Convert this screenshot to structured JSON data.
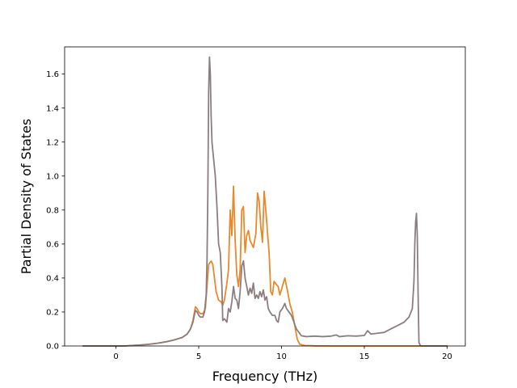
{
  "chart_data": {
    "type": "line",
    "title": "",
    "xlabel": "Frequency (THz)",
    "ylabel": "Partial Density of States",
    "xlim": [
      -3.1,
      21.1
    ],
    "ylim": [
      0.0,
      1.76
    ],
    "x_ticks": [
      0,
      5,
      10,
      15,
      20
    ],
    "y_ticks": [
      0.0,
      0.2,
      0.4,
      0.6,
      0.8,
      1.0,
      1.2,
      1.4,
      1.6
    ],
    "x_tick_labels": [
      "0",
      "5",
      "10",
      "15",
      "20"
    ],
    "y_tick_labels": [
      "0.0",
      "0.2",
      "0.4",
      "0.6",
      "0.8",
      "1.0",
      "1.2",
      "1.4",
      "1.6"
    ],
    "grid": false,
    "legend": "none",
    "series": [
      {
        "color": "#e8892b",
        "points": [
          [
            -2.0,
            0.0
          ],
          [
            0.0,
            0.0
          ],
          [
            0.5,
            0.0
          ],
          [
            1.0,
            0.003
          ],
          [
            1.5,
            0.006
          ],
          [
            2.0,
            0.01
          ],
          [
            2.5,
            0.016
          ],
          [
            3.0,
            0.024
          ],
          [
            3.5,
            0.035
          ],
          [
            4.0,
            0.05
          ],
          [
            4.3,
            0.07
          ],
          [
            4.5,
            0.1
          ],
          [
            4.65,
            0.15
          ],
          [
            4.8,
            0.23
          ],
          [
            4.9,
            0.22
          ],
          [
            5.0,
            0.2
          ],
          [
            5.1,
            0.19
          ],
          [
            5.25,
            0.19
          ],
          [
            5.4,
            0.22
          ],
          [
            5.5,
            0.35
          ],
          [
            5.6,
            0.48
          ],
          [
            5.75,
            0.5
          ],
          [
            5.85,
            0.48
          ],
          [
            5.95,
            0.4
          ],
          [
            6.05,
            0.32
          ],
          [
            6.2,
            0.27
          ],
          [
            6.35,
            0.26
          ],
          [
            6.45,
            0.24
          ],
          [
            6.55,
            0.27
          ],
          [
            6.7,
            0.37
          ],
          [
            6.8,
            0.45
          ],
          [
            6.9,
            0.8
          ],
          [
            7.0,
            0.65
          ],
          [
            7.1,
            0.94
          ],
          [
            7.2,
            0.62
          ],
          [
            7.3,
            0.42
          ],
          [
            7.4,
            0.35
          ],
          [
            7.5,
            0.45
          ],
          [
            7.6,
            0.8
          ],
          [
            7.7,
            0.82
          ],
          [
            7.8,
            0.55
          ],
          [
            7.9,
            0.65
          ],
          [
            8.0,
            0.68
          ],
          [
            8.1,
            0.62
          ],
          [
            8.2,
            0.6
          ],
          [
            8.3,
            0.58
          ],
          [
            8.45,
            0.66
          ],
          [
            8.55,
            0.9
          ],
          [
            8.65,
            0.85
          ],
          [
            8.75,
            0.7
          ],
          [
            8.85,
            0.61
          ],
          [
            8.95,
            0.91
          ],
          [
            9.05,
            0.8
          ],
          [
            9.15,
            0.67
          ],
          [
            9.25,
            0.55
          ],
          [
            9.35,
            0.32
          ],
          [
            9.45,
            0.3
          ],
          [
            9.55,
            0.38
          ],
          [
            9.7,
            0.36
          ],
          [
            9.8,
            0.35
          ],
          [
            9.9,
            0.3
          ],
          [
            10.05,
            0.35
          ],
          [
            10.2,
            0.4
          ],
          [
            10.35,
            0.33
          ],
          [
            10.5,
            0.25
          ],
          [
            10.65,
            0.2
          ],
          [
            10.8,
            0.12
          ],
          [
            10.95,
            0.04
          ],
          [
            11.1,
            0.01
          ],
          [
            11.4,
            0.003
          ],
          [
            12.0,
            0.001
          ],
          [
            13.0,
            0.0
          ],
          [
            15.0,
            0.0
          ],
          [
            17.0,
            0.0
          ],
          [
            18.3,
            0.0
          ],
          [
            18.4,
            0.0
          ],
          [
            20.0,
            0.0
          ]
        ]
      },
      {
        "color": "#8c7e80",
        "points": [
          [
            -2.0,
            0.0
          ],
          [
            0.0,
            0.0
          ],
          [
            0.5,
            0.0
          ],
          [
            1.0,
            0.003
          ],
          [
            1.5,
            0.006
          ],
          [
            2.0,
            0.01
          ],
          [
            2.5,
            0.016
          ],
          [
            3.0,
            0.024
          ],
          [
            3.5,
            0.035
          ],
          [
            4.0,
            0.05
          ],
          [
            4.3,
            0.07
          ],
          [
            4.5,
            0.1
          ],
          [
            4.65,
            0.14
          ],
          [
            4.8,
            0.21
          ],
          [
            4.9,
            0.2
          ],
          [
            5.0,
            0.18
          ],
          [
            5.1,
            0.17
          ],
          [
            5.25,
            0.17
          ],
          [
            5.35,
            0.2
          ],
          [
            5.45,
            0.3
          ],
          [
            5.5,
            0.5
          ],
          [
            5.55,
            0.9
          ],
          [
            5.6,
            1.5
          ],
          [
            5.65,
            1.7
          ],
          [
            5.7,
            1.6
          ],
          [
            5.75,
            1.35
          ],
          [
            5.8,
            1.2
          ],
          [
            5.9,
            1.1
          ],
          [
            6.0,
            1.0
          ],
          [
            6.1,
            0.82
          ],
          [
            6.2,
            0.6
          ],
          [
            6.3,
            0.55
          ],
          [
            6.4,
            0.35
          ],
          [
            6.45,
            0.15
          ],
          [
            6.55,
            0.16
          ],
          [
            6.7,
            0.14
          ],
          [
            6.8,
            0.22
          ],
          [
            6.9,
            0.2
          ],
          [
            7.0,
            0.26
          ],
          [
            7.1,
            0.35
          ],
          [
            7.2,
            0.28
          ],
          [
            7.3,
            0.27
          ],
          [
            7.4,
            0.22
          ],
          [
            7.5,
            0.32
          ],
          [
            7.6,
            0.47
          ],
          [
            7.7,
            0.5
          ],
          [
            7.8,
            0.4
          ],
          [
            7.9,
            0.35
          ],
          [
            8.0,
            0.3
          ],
          [
            8.1,
            0.34
          ],
          [
            8.2,
            0.31
          ],
          [
            8.3,
            0.37
          ],
          [
            8.4,
            0.28
          ],
          [
            8.5,
            0.3
          ],
          [
            8.6,
            0.28
          ],
          [
            8.7,
            0.32
          ],
          [
            8.8,
            0.29
          ],
          [
            8.9,
            0.33
          ],
          [
            9.0,
            0.27
          ],
          [
            9.1,
            0.29
          ],
          [
            9.2,
            0.22
          ],
          [
            9.3,
            0.2
          ],
          [
            9.45,
            0.18
          ],
          [
            9.6,
            0.18
          ],
          [
            9.7,
            0.15
          ],
          [
            9.8,
            0.14
          ],
          [
            9.9,
            0.2
          ],
          [
            10.05,
            0.22
          ],
          [
            10.2,
            0.25
          ],
          [
            10.3,
            0.22
          ],
          [
            10.45,
            0.2
          ],
          [
            10.6,
            0.18
          ],
          [
            10.75,
            0.14
          ],
          [
            10.9,
            0.1
          ],
          [
            11.05,
            0.08
          ],
          [
            11.2,
            0.06
          ],
          [
            11.5,
            0.055
          ],
          [
            12.0,
            0.058
          ],
          [
            12.5,
            0.055
          ],
          [
            13.0,
            0.058
          ],
          [
            13.3,
            0.065
          ],
          [
            13.5,
            0.055
          ],
          [
            14.0,
            0.06
          ],
          [
            14.5,
            0.058
          ],
          [
            15.0,
            0.062
          ],
          [
            15.2,
            0.09
          ],
          [
            15.4,
            0.07
          ],
          [
            15.8,
            0.075
          ],
          [
            16.2,
            0.08
          ],
          [
            16.6,
            0.1
          ],
          [
            17.0,
            0.12
          ],
          [
            17.4,
            0.14
          ],
          [
            17.7,
            0.17
          ],
          [
            17.9,
            0.22
          ],
          [
            18.0,
            0.38
          ],
          [
            18.05,
            0.6
          ],
          [
            18.1,
            0.73
          ],
          [
            18.15,
            0.78
          ],
          [
            18.2,
            0.65
          ],
          [
            18.25,
            0.3
          ],
          [
            18.3,
            0.02
          ],
          [
            18.4,
            0.0
          ],
          [
            20.0,
            0.0
          ]
        ]
      }
    ]
  }
}
